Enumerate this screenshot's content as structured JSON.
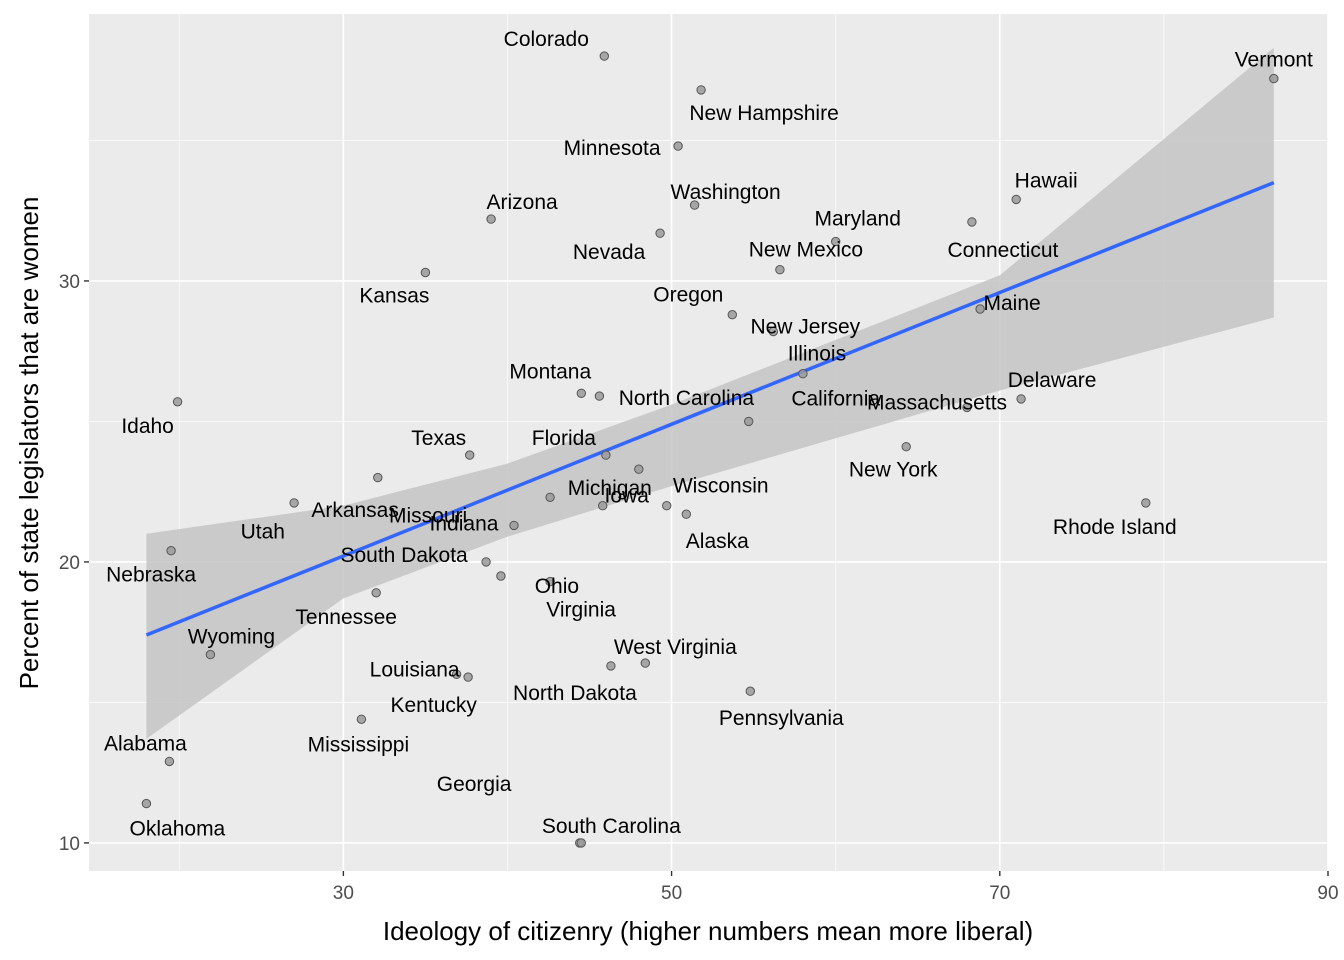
{
  "colors": {
    "panel": "#ebebeb",
    "grid_major": "#ffffff",
    "point_fill": "#9a9a9a",
    "point_stroke": "#555555",
    "band": "#c4c4c4",
    "fit_line": "#3366ff"
  },
  "chart_data": {
    "type": "scatter",
    "title": "",
    "xlabel": "Ideology of citizenry (higher numbers mean more liberal)",
    "ylabel": "Percent of state legislators that are women",
    "xlim": [
      14.5,
      90
    ],
    "ylim": [
      9.0,
      39.5
    ],
    "x_ticks": [
      30,
      50,
      70,
      90
    ],
    "y_ticks": [
      10,
      20,
      30
    ],
    "x_tick_labels": [
      "30",
      "50",
      "70",
      "90"
    ],
    "y_tick_labels": [
      "10",
      "20",
      "30"
    ],
    "grid": true,
    "points": [
      {
        "state": "Colorado",
        "x": 45.9,
        "y": 38.0
      },
      {
        "state": "Vermont",
        "x": 86.7,
        "y": 37.2
      },
      {
        "state": "New Hampshire",
        "x": 51.8,
        "y": 36.8
      },
      {
        "state": "Minnesota",
        "x": 50.4,
        "y": 34.8
      },
      {
        "state": "Hawaii",
        "x": 71.0,
        "y": 32.9
      },
      {
        "state": "Washington",
        "x": 51.4,
        "y": 32.7
      },
      {
        "state": "Arizona",
        "x": 39.0,
        "y": 32.2
      },
      {
        "state": "Connecticut",
        "x": 68.3,
        "y": 32.1
      },
      {
        "state": "Nevada",
        "x": 49.3,
        "y": 31.7
      },
      {
        "state": "Maryland",
        "x": 60.0,
        "y": 31.4
      },
      {
        "state": "New Mexico",
        "x": 56.6,
        "y": 30.4
      },
      {
        "state": "Kansas",
        "x": 35.0,
        "y": 30.3
      },
      {
        "state": "Maine",
        "x": 68.8,
        "y": 29.0
      },
      {
        "state": "Oregon",
        "x": 53.7,
        "y": 28.8
      },
      {
        "state": "New Jersey",
        "x": 56.2,
        "y": 28.2
      },
      {
        "state": "Illinois",
        "x": 58.0,
        "y": 26.7
      },
      {
        "state": "Montana",
        "x": 44.5,
        "y": 26.0
      },
      {
        "state": "North Carolina",
        "x": 45.6,
        "y": 25.9
      },
      {
        "state": "Delaware",
        "x": 71.3,
        "y": 25.8
      },
      {
        "state": "Idaho",
        "x": 19.9,
        "y": 25.7
      },
      {
        "state": "Massachusetts",
        "x": 68.0,
        "y": 25.5
      },
      {
        "state": "California",
        "x": 54.7,
        "y": 25.0
      },
      {
        "state": "New York",
        "x": 64.3,
        "y": 24.1
      },
      {
        "state": "Texas",
        "x": 37.7,
        "y": 23.8
      },
      {
        "state": "Florida",
        "x": 46.0,
        "y": 23.8
      },
      {
        "state": "Michigan",
        "x": 48.0,
        "y": 23.3
      },
      {
        "state": "Utah",
        "x": 32.1,
        "y": 23.0
      },
      {
        "state": "Missouri",
        "x": 42.6,
        "y": 22.3
      },
      {
        "state": "Arkansas",
        "x": 27.0,
        "y": 22.1
      },
      {
        "state": "Rhode Island",
        "x": 78.9,
        "y": 22.1
      },
      {
        "state": "Iowa",
        "x": 45.8,
        "y": 22.0
      },
      {
        "state": "Wisconsin",
        "x": 49.7,
        "y": 22.0
      },
      {
        "state": "Alaska",
        "x": 50.9,
        "y": 21.7
      },
      {
        "state": "Indiana",
        "x": 40.4,
        "y": 21.3
      },
      {
        "state": "Nebraska",
        "x": 19.5,
        "y": 20.4
      },
      {
        "state": "South Dakota",
        "x": 38.7,
        "y": 20.0
      },
      {
        "state": "Ohio",
        "x": 39.6,
        "y": 19.5
      },
      {
        "state": "Virginia",
        "x": 42.6,
        "y": 19.3
      },
      {
        "state": "Tennessee",
        "x": 32.0,
        "y": 18.9
      },
      {
        "state": "Wyoming",
        "x": 21.9,
        "y": 16.7
      },
      {
        "state": "West Virginia",
        "x": 48.4,
        "y": 16.4
      },
      {
        "state": "North Dakota",
        "x": 46.3,
        "y": 16.3
      },
      {
        "state": "Louisiana",
        "x": 36.9,
        "y": 16.0
      },
      {
        "state": "Georgia",
        "x": 37.6,
        "y": 15.9
      },
      {
        "state": "Pennsylvania",
        "x": 54.8,
        "y": 15.4
      },
      {
        "state": "Mississippi",
        "x": 31.1,
        "y": 14.4
      },
      {
        "state": "Alabama",
        "x": 19.4,
        "y": 12.9
      },
      {
        "state": "Oklahoma",
        "x": 18.0,
        "y": 11.4
      },
      {
        "state": "Kentucky",
        "x": 44.4,
        "y": 10.0
      },
      {
        "state": "South Carolina",
        "x": 44.5,
        "y": 10.0
      }
    ],
    "fit": {
      "type": "linear",
      "x": [
        18.0,
        86.7
      ],
      "y": [
        17.4,
        33.5
      ],
      "confidence_band": {
        "x": [
          18.0,
          30,
          40,
          50,
          60,
          70,
          86.7
        ],
        "lower": [
          13.7,
          18.7,
          20.9,
          22.7,
          24.4,
          26.1,
          28.7
        ],
        "upper": [
          21.0,
          22.0,
          23.5,
          25.6,
          27.9,
          30.2,
          38.3
        ]
      }
    }
  }
}
